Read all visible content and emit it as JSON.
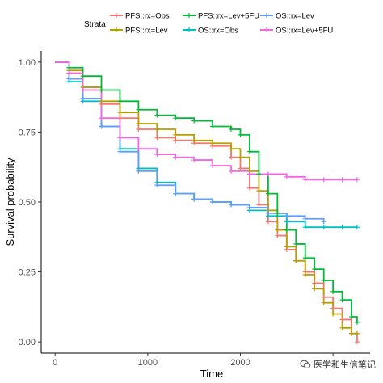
{
  "chart_data": {
    "type": "line",
    "subtype": "kaplan-meier step curves with censor marks",
    "xlabel": "Time",
    "ylabel": "Survival probability",
    "xlim": [
      -150,
      3400
    ],
    "ylim": [
      -0.04,
      1.04
    ],
    "x_ticks": [
      0,
      1000,
      2000,
      3000
    ],
    "x_tick_labels": [
      "0",
      "1000",
      "2000",
      "3000"
    ],
    "y_ticks": [
      0.0,
      0.25,
      0.5,
      0.75,
      1.0
    ],
    "y_tick_labels": [
      "0.00",
      "0.25",
      "0.50",
      "0.75",
      "1.00"
    ],
    "grid": false,
    "legend": {
      "title": "Strata",
      "placement": "top",
      "columns": [
        [
          {
            "name": "PFS::rx=Obs",
            "color": "#F8766D"
          },
          {
            "name": "PFS::rx=Lev",
            "color": "#B79F00"
          }
        ],
        [
          {
            "name": "PFS::rx=Lev+5FU",
            "color": "#00BA38"
          },
          {
            "name": "OS::rx=Obs",
            "color": "#00BFC4"
          }
        ],
        [
          {
            "name": "OS::rx=Lev",
            "color": "#619CFF"
          },
          {
            "name": "OS::rx=Lev+5FU",
            "color": "#F564E3"
          }
        ]
      ]
    },
    "series": [
      {
        "name": "PFS::rx=Obs",
        "color": "#F8766D",
        "x": [
          0,
          150,
          300,
          500,
          700,
          900,
          1100,
          1300,
          1500,
          1700,
          1900,
          2000,
          2100,
          2200,
          2300,
          2400,
          2500,
          2600,
          2700,
          2800,
          2900,
          3000,
          3100,
          3200,
          3260
        ],
        "y": [
          1.0,
          0.96,
          0.91,
          0.85,
          0.8,
          0.76,
          0.73,
          0.72,
          0.71,
          0.7,
          0.66,
          0.62,
          0.55,
          0.49,
          0.43,
          0.38,
          0.33,
          0.29,
          0.25,
          0.21,
          0.16,
          0.12,
          0.08,
          0.03,
          0.0
        ]
      },
      {
        "name": "PFS::rx=Lev",
        "color": "#B79F00",
        "x": [
          0,
          150,
          300,
          500,
          700,
          900,
          1100,
          1300,
          1500,
          1700,
          1900,
          2000,
          2100,
          2200,
          2300,
          2400,
          2500,
          2600,
          2700,
          2800,
          2900,
          3000,
          3100,
          3200,
          3260
        ],
        "y": [
          1.0,
          0.97,
          0.91,
          0.86,
          0.82,
          0.78,
          0.76,
          0.74,
          0.72,
          0.71,
          0.69,
          0.66,
          0.61,
          0.54,
          0.47,
          0.4,
          0.34,
          0.29,
          0.24,
          0.19,
          0.14,
          0.1,
          0.05,
          0.03,
          0.03
        ]
      },
      {
        "name": "PFS::rx=Lev+5FU",
        "color": "#00BA38",
        "x": [
          0,
          150,
          300,
          500,
          700,
          900,
          1100,
          1300,
          1500,
          1700,
          1900,
          2000,
          2100,
          2200,
          2300,
          2400,
          2500,
          2600,
          2700,
          2800,
          2900,
          3000,
          3100,
          3200,
          3260
        ],
        "y": [
          1.0,
          0.98,
          0.95,
          0.9,
          0.86,
          0.83,
          0.81,
          0.8,
          0.79,
          0.77,
          0.76,
          0.74,
          0.68,
          0.6,
          0.53,
          0.46,
          0.4,
          0.35,
          0.3,
          0.26,
          0.22,
          0.18,
          0.15,
          0.09,
          0.07
        ]
      },
      {
        "name": "OS::rx=Obs",
        "color": "#00BFC4",
        "x": [
          0,
          150,
          300,
          500,
          700,
          900,
          1100,
          1300,
          1500,
          1700,
          1900,
          2100,
          2300,
          2500,
          2700,
          2900,
          3100,
          3260
        ],
        "y": [
          1.0,
          0.93,
          0.86,
          0.77,
          0.69,
          0.62,
          0.57,
          0.53,
          0.51,
          0.5,
          0.49,
          0.47,
          0.45,
          0.43,
          0.41,
          0.41,
          0.41,
          0.41
        ]
      },
      {
        "name": "OS::rx=Lev",
        "color": "#619CFF",
        "x": [
          0,
          150,
          300,
          500,
          700,
          900,
          1100,
          1300,
          1500,
          1700,
          1900,
          2100,
          2300,
          2500,
          2700,
          2900
        ],
        "y": [
          1.0,
          0.94,
          0.87,
          0.77,
          0.68,
          0.61,
          0.56,
          0.53,
          0.51,
          0.5,
          0.49,
          0.48,
          0.46,
          0.45,
          0.44,
          0.43
        ]
      },
      {
        "name": "OS::rx=Lev+5FU",
        "color": "#F564E3",
        "x": [
          0,
          150,
          300,
          500,
          700,
          900,
          1100,
          1300,
          1500,
          1700,
          1900,
          2100,
          2300,
          2500,
          2700,
          2900,
          3100,
          3260
        ],
        "y": [
          1.0,
          0.96,
          0.9,
          0.8,
          0.73,
          0.69,
          0.67,
          0.66,
          0.65,
          0.63,
          0.61,
          0.6,
          0.6,
          0.59,
          0.58,
          0.58,
          0.58,
          0.58
        ]
      }
    ]
  },
  "watermark": {
    "text": "医学和生信笔记",
    "icon": "wechat-icon"
  }
}
